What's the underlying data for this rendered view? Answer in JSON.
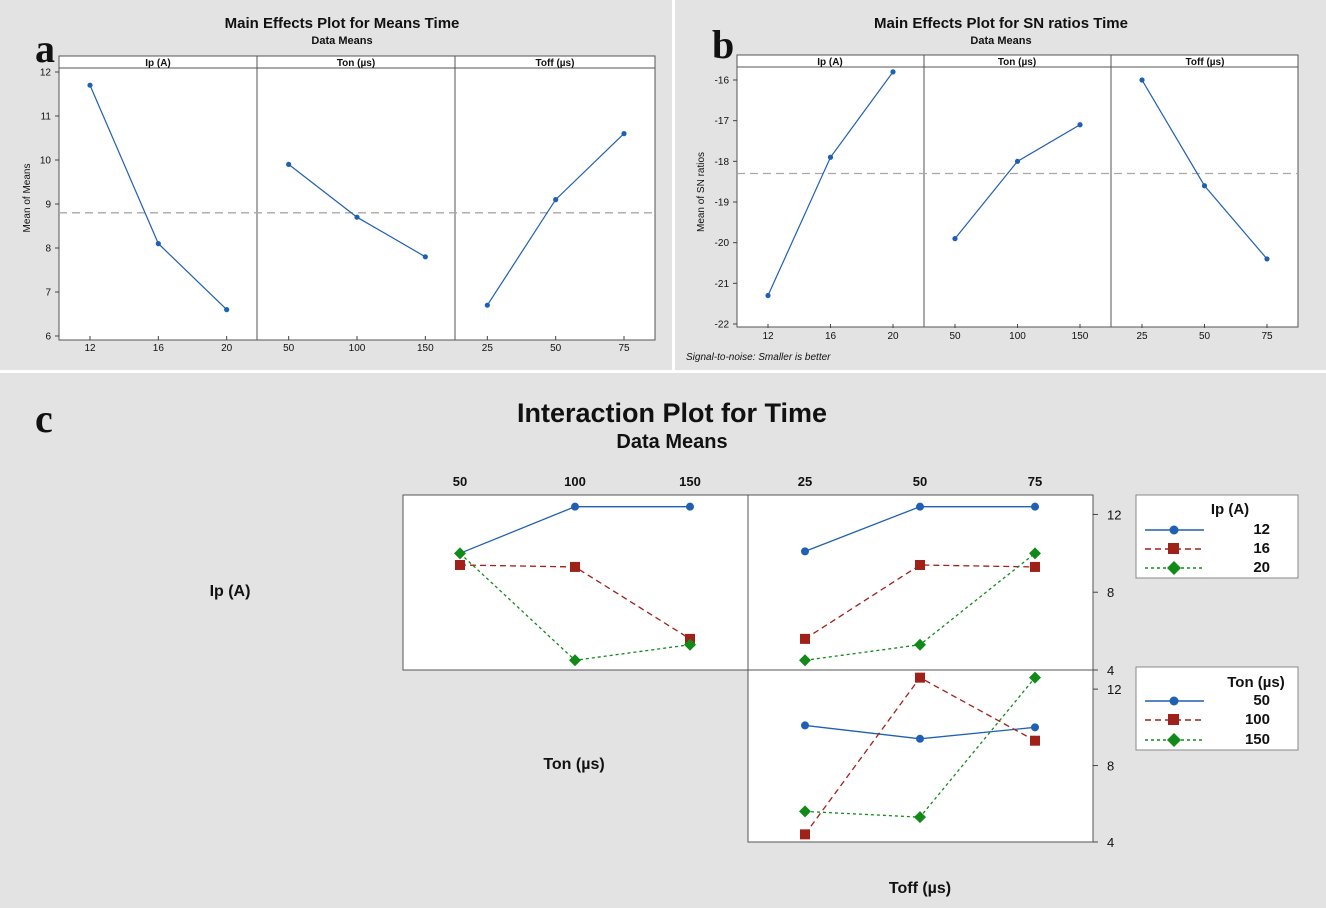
{
  "colors": {
    "panel_bg": "#e3e3e3",
    "plot_bg": "#ffffff",
    "series_blue": "#1f5fb4",
    "series_red": "#a0201a",
    "series_green": "#128a1a",
    "mean_line": "#a8a8a8",
    "frame": "#555555"
  },
  "panel_a": {
    "letter": "a",
    "title": "Main Effects Plot for Means Time",
    "subtitle": "Data Means",
    "ylabel": "Mean of Means",
    "facets": [
      "Ip (A)",
      "Ton (µs)",
      "Toff (µs)"
    ]
  },
  "panel_b": {
    "letter": "b",
    "title": "Main Effects Plot for SN ratios Time",
    "subtitle": "Data Means",
    "ylabel": "Mean of SN ratios",
    "facets": [
      "Ip (A)",
      "Ton (µs)",
      "Toff (µs)"
    ],
    "footnote": "Signal-to-noise: Smaller is better"
  },
  "panel_c": {
    "letter": "c",
    "title": "Interaction Plot for Time",
    "subtitle": "Data Means",
    "row_labels": [
      "Ip (A)",
      "Ton (µs)"
    ],
    "xlabel": "Toff (µs)",
    "legend_ip_title": "Ip (A)",
    "legend_ip_items": [
      "12",
      "16",
      "20"
    ],
    "legend_ton_title": "Ton (µs)",
    "legend_ton_items": [
      "50",
      "100",
      "150"
    ]
  },
  "chart_data": [
    {
      "id": "a",
      "type": "line",
      "title": "Main Effects Plot for Means Time",
      "subtitle": "Data Means",
      "ylabel": "Mean of Means",
      "ylim": [
        6,
        12
      ],
      "yticks": [
        6,
        7,
        8,
        9,
        10,
        11,
        12
      ],
      "overall_mean": 8.8,
      "facets": [
        {
          "name": "Ip (A)",
          "x": [
            "12",
            "16",
            "20"
          ],
          "y": [
            11.7,
            8.1,
            6.6
          ]
        },
        {
          "name": "Ton (µs)",
          "x": [
            "50",
            "100",
            "150"
          ],
          "y": [
            9.9,
            8.7,
            7.8
          ]
        },
        {
          "name": "Toff (µs)",
          "x": [
            "25",
            "50",
            "75"
          ],
          "y": [
            6.7,
            9.1,
            10.6
          ]
        }
      ]
    },
    {
      "id": "b",
      "type": "line",
      "title": "Main Effects Plot for SN ratios Time",
      "subtitle": "Data Means",
      "ylabel": "Mean of SN ratios",
      "ylim": [
        -22,
        -16
      ],
      "yticks": [
        -22,
        -21,
        -20,
        -19,
        -18,
        -17,
        -16
      ],
      "overall_mean": -18.3,
      "facets": [
        {
          "name": "Ip (A)",
          "x": [
            "12",
            "16",
            "20"
          ],
          "y": [
            -21.3,
            -17.9,
            -15.8
          ]
        },
        {
          "name": "Ton (µs)",
          "x": [
            "50",
            "100",
            "150"
          ],
          "y": [
            -19.9,
            -18.0,
            -17.1
          ]
        },
        {
          "name": "Toff (µs)",
          "x": [
            "25",
            "50",
            "75"
          ],
          "y": [
            -16.0,
            -18.6,
            -20.4
          ]
        }
      ]
    },
    {
      "id": "c",
      "type": "line",
      "title": "Interaction Plot for Time",
      "subtitle": "Data Means",
      "ylim": [
        4,
        13
      ],
      "yticks": [
        4,
        8,
        12
      ],
      "cells": [
        {
          "row": "Ip (A)",
          "x_factor": "Ton (µs)",
          "x": [
            "50",
            "100",
            "150"
          ],
          "series": [
            {
              "name": "12",
              "values": [
                10.0,
                12.4,
                12.4
              ]
            },
            {
              "name": "16",
              "values": [
                9.4,
                9.3,
                5.6
              ]
            },
            {
              "name": "20",
              "values": [
                10.0,
                4.5,
                5.3
              ]
            }
          ]
        },
        {
          "row": "Ip (A)",
          "x_factor": "Toff (µs)",
          "x": [
            "25",
            "50",
            "75"
          ],
          "series": [
            {
              "name": "12",
              "values": [
                10.1,
                12.4,
                12.4
              ]
            },
            {
              "name": "16",
              "values": [
                5.6,
                9.4,
                9.3
              ]
            },
            {
              "name": "20",
              "values": [
                4.5,
                5.3,
                10.0
              ]
            }
          ]
        },
        {
          "row": "Ton (µs)",
          "x_factor": "Toff (µs)",
          "x": [
            "25",
            "50",
            "75"
          ],
          "series": [
            {
              "name": "50",
              "values": [
                10.1,
                9.4,
                10.0
              ]
            },
            {
              "name": "100",
              "values": [
                4.4,
                12.6,
                9.3
              ]
            },
            {
              "name": "150",
              "values": [
                5.6,
                5.3,
                12.6
              ]
            }
          ]
        }
      ]
    }
  ]
}
